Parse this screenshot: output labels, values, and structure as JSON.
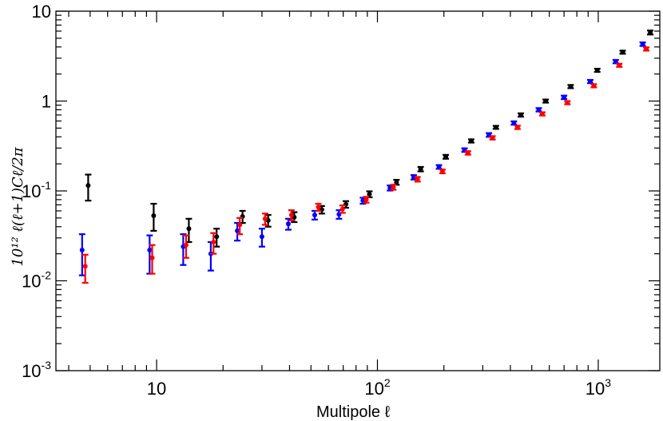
{
  "chart_data": {
    "type": "scatter",
    "xlabel": "Multipole ℓ",
    "ylabel": "10¹² ℓ(ℓ+1)Cℓ/2π",
    "xscale": "log",
    "yscale": "log",
    "xlim": [
      3.5,
      1900
    ],
    "ylim": [
      0.001,
      10
    ],
    "grid": false,
    "legend": "none",
    "x_tick_labels": [
      {
        "value": 10,
        "base": "10",
        "exp": ""
      },
      {
        "value": 100,
        "base": "10",
        "exp": "2"
      },
      {
        "value": 1000,
        "base": "10",
        "exp": "3"
      }
    ],
    "y_tick_labels": [
      {
        "value": 0.001,
        "base": "10",
        "exp": "-3"
      },
      {
        "value": 0.01,
        "base": "10",
        "exp": "-2"
      },
      {
        "value": 0.1,
        "base": "10",
        "exp": "-1"
      },
      {
        "value": 1,
        "base": "1",
        "exp": ""
      },
      {
        "value": 10,
        "base": "10",
        "exp": ""
      }
    ],
    "series": [
      {
        "color": "#000000",
        "points": [
          {
            "x": 4.9,
            "y": 0.115,
            "lo": 0.078,
            "hi": 0.152
          },
          {
            "x": 9.7,
            "y": 0.053,
            "lo": 0.036,
            "hi": 0.072
          },
          {
            "x": 14.0,
            "y": 0.038,
            "lo": 0.027,
            "hi": 0.049
          },
          {
            "x": 18.7,
            "y": 0.031,
            "lo": 0.024,
            "hi": 0.038
          },
          {
            "x": 24.5,
            "y": 0.052,
            "lo": 0.044,
            "hi": 0.06
          },
          {
            "x": 32.0,
            "y": 0.047,
            "lo": 0.04,
            "hi": 0.054
          },
          {
            "x": 42.0,
            "y": 0.051,
            "lo": 0.045,
            "hi": 0.058
          },
          {
            "x": 56.0,
            "y": 0.062,
            "lo": 0.056,
            "hi": 0.068
          },
          {
            "x": 72.0,
            "y": 0.071,
            "lo": 0.065,
            "hi": 0.077
          },
          {
            "x": 92.0,
            "y": 0.092,
            "lo": 0.085,
            "hi": 0.099
          },
          {
            "x": 122.0,
            "y": 0.125,
            "lo": 0.117,
            "hi": 0.133
          },
          {
            "x": 157.0,
            "y": 0.175,
            "lo": 0.165,
            "hi": 0.185
          },
          {
            "x": 204.0,
            "y": 0.24,
            "lo": 0.228,
            "hi": 0.252
          },
          {
            "x": 266.0,
            "y": 0.36,
            "lo": 0.345,
            "hi": 0.375
          },
          {
            "x": 344.0,
            "y": 0.51,
            "lo": 0.49,
            "hi": 0.53
          },
          {
            "x": 446.0,
            "y": 0.7,
            "lo": 0.67,
            "hi": 0.73
          },
          {
            "x": 578.0,
            "y": 1.0,
            "lo": 0.96,
            "hi": 1.04
          },
          {
            "x": 750.0,
            "y": 1.45,
            "lo": 1.39,
            "hi": 1.51
          },
          {
            "x": 990.0,
            "y": 2.2,
            "lo": 2.11,
            "hi": 2.29
          },
          {
            "x": 1290.0,
            "y": 3.5,
            "lo": 3.36,
            "hi": 3.64
          },
          {
            "x": 1720.0,
            "y": 5.8,
            "lo": 5.5,
            "hi": 6.1
          }
        ]
      },
      {
        "color": "#0000ff",
        "points": [
          {
            "x": 4.6,
            "y": 0.022,
            "lo": 0.0115,
            "hi": 0.033
          },
          {
            "x": 9.3,
            "y": 0.022,
            "lo": 0.012,
            "hi": 0.032
          },
          {
            "x": 13.2,
            "y": 0.024,
            "lo": 0.015,
            "hi": 0.033
          },
          {
            "x": 17.6,
            "y": 0.02,
            "lo": 0.013,
            "hi": 0.027
          },
          {
            "x": 23.2,
            "y": 0.036,
            "lo": 0.028,
            "hi": 0.044
          },
          {
            "x": 30.0,
            "y": 0.031,
            "lo": 0.024,
            "hi": 0.038
          },
          {
            "x": 39.5,
            "y": 0.043,
            "lo": 0.037,
            "hi": 0.049
          },
          {
            "x": 52.0,
            "y": 0.054,
            "lo": 0.048,
            "hi": 0.06
          },
          {
            "x": 67.0,
            "y": 0.055,
            "lo": 0.049,
            "hi": 0.061
          },
          {
            "x": 86.0,
            "y": 0.078,
            "lo": 0.072,
            "hi": 0.084
          },
          {
            "x": 114.0,
            "y": 0.108,
            "lo": 0.101,
            "hi": 0.115
          },
          {
            "x": 146.0,
            "y": 0.142,
            "lo": 0.134,
            "hi": 0.15
          },
          {
            "x": 190.0,
            "y": 0.185,
            "lo": 0.176,
            "hi": 0.194
          },
          {
            "x": 248.0,
            "y": 0.285,
            "lo": 0.272,
            "hi": 0.298
          },
          {
            "x": 320.0,
            "y": 0.42,
            "lo": 0.4,
            "hi": 0.44
          },
          {
            "x": 415.0,
            "y": 0.57,
            "lo": 0.545,
            "hi": 0.595
          },
          {
            "x": 538.0,
            "y": 0.8,
            "lo": 0.765,
            "hi": 0.835
          },
          {
            "x": 700.0,
            "y": 1.1,
            "lo": 1.05,
            "hi": 1.15
          },
          {
            "x": 920.0,
            "y": 1.65,
            "lo": 1.58,
            "hi": 1.72
          },
          {
            "x": 1200.0,
            "y": 2.75,
            "lo": 2.63,
            "hi": 2.87
          },
          {
            "x": 1590.0,
            "y": 4.3,
            "lo": 4.1,
            "hi": 4.5
          }
        ]
      },
      {
        "color": "#ff0000",
        "points": [
          {
            "x": 4.75,
            "y": 0.0145,
            "lo": 0.0095,
            "hi": 0.0195
          },
          {
            "x": 9.55,
            "y": 0.018,
            "lo": 0.012,
            "hi": 0.025
          },
          {
            "x": 13.6,
            "y": 0.025,
            "lo": 0.018,
            "hi": 0.032
          },
          {
            "x": 18.1,
            "y": 0.027,
            "lo": 0.02,
            "hi": 0.034
          },
          {
            "x": 23.8,
            "y": 0.042,
            "lo": 0.033,
            "hi": 0.05
          },
          {
            "x": 31.0,
            "y": 0.049,
            "lo": 0.042,
            "hi": 0.056
          },
          {
            "x": 40.8,
            "y": 0.054,
            "lo": 0.047,
            "hi": 0.061
          },
          {
            "x": 54.0,
            "y": 0.066,
            "lo": 0.06,
            "hi": 0.072
          },
          {
            "x": 69.5,
            "y": 0.063,
            "lo": 0.057,
            "hi": 0.069
          },
          {
            "x": 89.0,
            "y": 0.08,
            "lo": 0.074,
            "hi": 0.086
          },
          {
            "x": 118.0,
            "y": 0.11,
            "lo": 0.103,
            "hi": 0.117
          },
          {
            "x": 152.0,
            "y": 0.135,
            "lo": 0.127,
            "hi": 0.143
          },
          {
            "x": 197.0,
            "y": 0.165,
            "lo": 0.157,
            "hi": 0.173
          },
          {
            "x": 257.0,
            "y": 0.265,
            "lo": 0.253,
            "hi": 0.277
          },
          {
            "x": 332.0,
            "y": 0.39,
            "lo": 0.373,
            "hi": 0.407
          },
          {
            "x": 431.0,
            "y": 0.51,
            "lo": 0.488,
            "hi": 0.532
          },
          {
            "x": 558.0,
            "y": 0.72,
            "lo": 0.69,
            "hi": 0.75
          },
          {
            "x": 725.0,
            "y": 0.96,
            "lo": 0.92,
            "hi": 1.0
          },
          {
            "x": 955.0,
            "y": 1.48,
            "lo": 1.42,
            "hi": 1.54
          },
          {
            "x": 1245.0,
            "y": 2.5,
            "lo": 2.4,
            "hi": 2.6
          },
          {
            "x": 1650.0,
            "y": 3.8,
            "lo": 3.64,
            "hi": 3.96
          }
        ]
      }
    ]
  }
}
